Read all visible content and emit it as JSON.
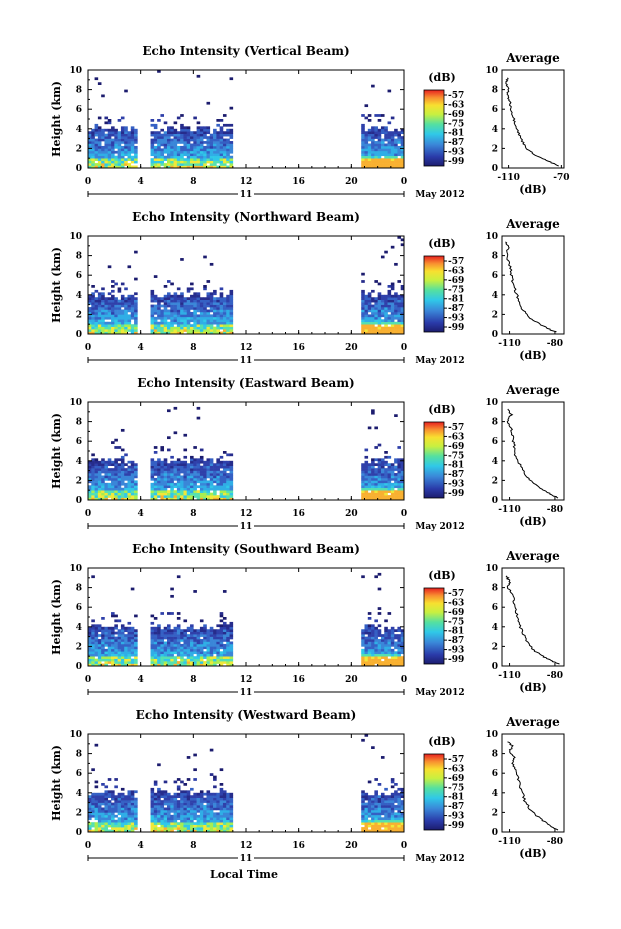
{
  "figure": {
    "x_axis_title": "Local Time",
    "date_label": "May 2012",
    "day_label": "11",
    "side_title": "Average",
    "side_xlabel": "(dB)",
    "colorbar_unit": "(dB)",
    "colorbar_ticks": [
      "-57",
      "-63",
      "-69",
      "-75",
      "-81",
      "-87",
      "-93",
      "-99"
    ]
  },
  "chart_data": [
    {
      "type": "heatmap",
      "title": "Echo Intensity (Vertical Beam)",
      "ylabel": "Height (km)",
      "x_ticks": [
        "0",
        "4",
        "8",
        "12",
        "16",
        "20",
        "0"
      ],
      "y_ticks": [
        "0",
        "2",
        "4",
        "6",
        "8",
        "10"
      ],
      "xlim": [
        0,
        24
      ],
      "ylim": [
        0,
        10
      ],
      "data_gaps_hours": [
        [
          3.6,
          4.6
        ],
        [
          11.0,
          20.6
        ]
      ],
      "profile": {
        "title": "Average",
        "xlabel": "(dB)",
        "x_ticks": [
          "-110",
          "-70"
        ],
        "xlim": [
          -115,
          -68
        ],
        "points": [
          [
            -111,
            9.2
          ],
          [
            -112,
            8.6
          ],
          [
            -110,
            8.0
          ],
          [
            -111,
            7.4
          ],
          [
            -109,
            6.8
          ],
          [
            -108,
            6.0
          ],
          [
            -106,
            5.0
          ],
          [
            -104,
            4.2
          ],
          [
            -102,
            3.4
          ],
          [
            -99,
            2.6
          ],
          [
            -95,
            1.8
          ],
          [
            -88,
            1.2
          ],
          [
            -80,
            0.7
          ],
          [
            -72,
            0.2
          ]
        ]
      }
    },
    {
      "type": "heatmap",
      "title": "Echo Intensity (Northward Beam)",
      "ylabel": "Height (km)",
      "x_ticks": [
        "0",
        "4",
        "8",
        "12",
        "16",
        "20",
        "0"
      ],
      "y_ticks": [
        "0",
        "2",
        "4",
        "6",
        "8",
        "10"
      ],
      "xlim": [
        0,
        24
      ],
      "ylim": [
        0,
        10
      ],
      "data_gaps_hours": [
        [
          3.6,
          4.6
        ],
        [
          11.0,
          20.6
        ]
      ],
      "profile": {
        "title": "Average",
        "xlabel": "(dB)",
        "x_ticks": [
          "-110",
          "-80"
        ],
        "xlim": [
          -115,
          -74
        ],
        "points": [
          [
            -112,
            9.4
          ],
          [
            -111,
            8.8
          ],
          [
            -112,
            8.0
          ],
          [
            -110,
            7.2
          ],
          [
            -109,
            6.2
          ],
          [
            -108,
            5.4
          ],
          [
            -106,
            4.4
          ],
          [
            -104,
            3.4
          ],
          [
            -101,
            2.4
          ],
          [
            -96,
            1.6
          ],
          [
            -90,
            1.0
          ],
          [
            -84,
            0.5
          ],
          [
            -79,
            0.2
          ]
        ]
      }
    },
    {
      "type": "heatmap",
      "title": "Echo Intensity (Eastward Beam)",
      "ylabel": "Height (km)",
      "x_ticks": [
        "0",
        "4",
        "8",
        "12",
        "16",
        "20",
        "0"
      ],
      "y_ticks": [
        "0",
        "2",
        "4",
        "6",
        "8",
        "10"
      ],
      "xlim": [
        0,
        24
      ],
      "ylim": [
        0,
        10
      ],
      "data_gaps_hours": [
        [
          3.6,
          4.6
        ],
        [
          11.0,
          20.6
        ]
      ],
      "profile": {
        "title": "Average",
        "xlabel": "(dB)",
        "x_ticks": [
          "-110",
          "-80"
        ],
        "xlim": [
          -115,
          -74
        ],
        "points": [
          [
            -111,
            9.3
          ],
          [
            -109,
            8.7
          ],
          [
            -111,
            8.0
          ],
          [
            -109,
            7.2
          ],
          [
            -108,
            6.4
          ],
          [
            -107,
            5.6
          ],
          [
            -106,
            4.6
          ],
          [
            -103,
            3.6
          ],
          [
            -100,
            2.6
          ],
          [
            -95,
            1.8
          ],
          [
            -89,
            1.1
          ],
          [
            -83,
            0.6
          ],
          [
            -78,
            0.2
          ]
        ]
      }
    },
    {
      "type": "heatmap",
      "title": "Echo Intensity (Southward Beam)",
      "ylabel": "Height (km)",
      "x_ticks": [
        "0",
        "4",
        "8",
        "12",
        "16",
        "20",
        "0"
      ],
      "y_ticks": [
        "0",
        "2",
        "4",
        "6",
        "8",
        "10"
      ],
      "xlim": [
        0,
        24
      ],
      "ylim": [
        0,
        10
      ],
      "data_gaps_hours": [
        [
          3.6,
          4.6
        ],
        [
          11.0,
          20.6
        ]
      ],
      "profile": {
        "title": "Average",
        "xlabel": "(dB)",
        "x_ticks": [
          "-110",
          "-80"
        ],
        "xlim": [
          -115,
          -74
        ],
        "points": [
          [
            -112,
            9.2
          ],
          [
            -110,
            8.6
          ],
          [
            -111,
            8.0
          ],
          [
            -108,
            7.4
          ],
          [
            -107,
            6.6
          ],
          [
            -106,
            5.6
          ],
          [
            -104,
            4.6
          ],
          [
            -102,
            3.6
          ],
          [
            -99,
            2.6
          ],
          [
            -94,
            1.6
          ],
          [
            -88,
            1.0
          ],
          [
            -82,
            0.5
          ],
          [
            -77,
            0.2
          ]
        ]
      }
    },
    {
      "type": "heatmap",
      "title": "Echo Intensity (Westward Beam)",
      "ylabel": "Height (km)",
      "x_ticks": [
        "0",
        "4",
        "8",
        "12",
        "16",
        "20",
        "0"
      ],
      "y_ticks": [
        "0",
        "2",
        "4",
        "6",
        "8",
        "10"
      ],
      "xlim": [
        0,
        24
      ],
      "ylim": [
        0,
        10
      ],
      "data_gaps_hours": [
        [
          3.6,
          4.6
        ],
        [
          11.0,
          20.6
        ]
      ],
      "profile": {
        "title": "Average",
        "xlabel": "(dB)",
        "x_ticks": [
          "-110",
          "-80"
        ],
        "xlim": [
          -115,
          -74
        ],
        "points": [
          [
            -111,
            9.2
          ],
          [
            -108,
            8.8
          ],
          [
            -110,
            8.2
          ],
          [
            -107,
            7.6
          ],
          [
            -108,
            7.0
          ],
          [
            -105,
            6.2
          ],
          [
            -104,
            5.2
          ],
          [
            -102,
            4.2
          ],
          [
            -100,
            3.2
          ],
          [
            -96,
            2.2
          ],
          [
            -90,
            1.4
          ],
          [
            -84,
            0.7
          ],
          [
            -78,
            0.2
          ]
        ]
      }
    }
  ]
}
